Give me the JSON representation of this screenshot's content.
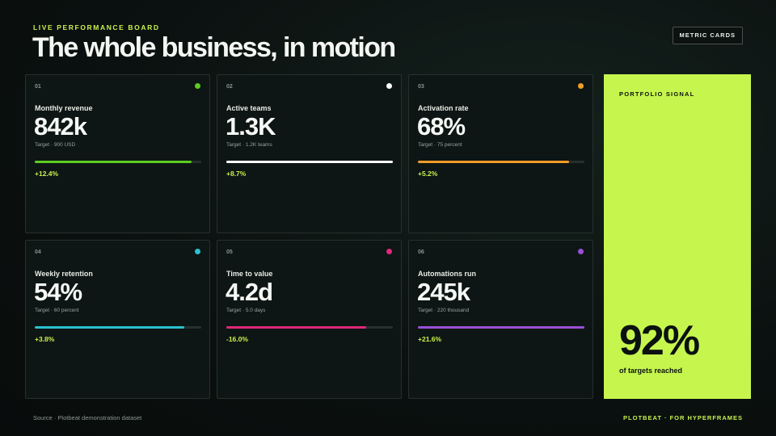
{
  "header": {
    "eyebrow": "LIVE PERFORMANCE BOARD",
    "title": "The whole business, in motion",
    "badge": "METRIC CARDS"
  },
  "cards": [
    {
      "num": "01",
      "label": "Monthly revenue",
      "value": "842k",
      "target": "Target · 900 USD",
      "change": "+12.4%",
      "progress": 0.94,
      "color": "#5ecb23"
    },
    {
      "num": "02",
      "label": "Active teams",
      "value": "1.3K",
      "target": "Target · 1.2K teams",
      "change": "+8.7%",
      "progress": 1.0,
      "color": "#ffffff"
    },
    {
      "num": "03",
      "label": "Activation rate",
      "value": "68%",
      "target": "Target · 75 percent",
      "change": "+5.2%",
      "progress": 0.91,
      "color": "#f49b2a"
    },
    {
      "num": "04",
      "label": "Weekly retention",
      "value": "54%",
      "target": "Target · 60 percent",
      "change": "+3.8%",
      "progress": 0.9,
      "color": "#2bc0cf"
    },
    {
      "num": "05",
      "label": "Time to value",
      "value": "4.2d",
      "target": "Target · 5.0 days",
      "change": "-16.0%",
      "progress": 0.84,
      "color": "#e0287a"
    },
    {
      "num": "06",
      "label": "Automations run",
      "value": "245k",
      "target": "Target · 220 thousand",
      "change": "+21.6%",
      "progress": 1.0,
      "color": "#9b4fd6"
    }
  ],
  "signal": {
    "label": "PORTFOLIO SIGNAL",
    "value": "92%",
    "caption": "of targets reached"
  },
  "footer": {
    "source": "Source · Plotbeat demonstration dataset",
    "brand": "PLOTBEAT · FOR HYPERFRAMES"
  }
}
